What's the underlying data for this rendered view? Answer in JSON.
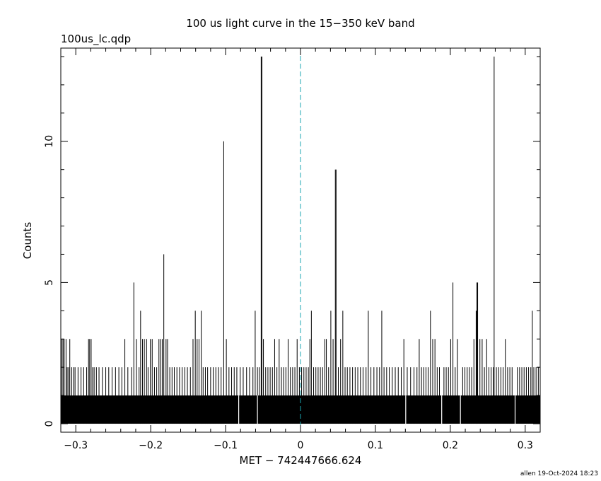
{
  "chart_data": {
    "type": "bar",
    "title": "100 us light curve in the 15−350 keV band",
    "subtitle": "100us_lc.qdp",
    "xlabel": "MET − 742447666.624",
    "ylabel": "Counts",
    "footer": "allen 19-Oct-2024 18:23",
    "xlim": [
      -0.32,
      0.32
    ],
    "ylim": [
      -0.3,
      13.3
    ],
    "x_ticks": [
      -0.3,
      -0.2,
      -0.1,
      0,
      0.1,
      0.2,
      0.3
    ],
    "x_tick_labels": [
      "−0.3",
      "−0.2",
      "−0.1",
      "0",
      "0.1",
      "0.2",
      "0.3"
    ],
    "y_ticks": [
      0,
      5,
      10
    ],
    "y_tick_labels": [
      "0",
      "5",
      "10"
    ],
    "baseline_counts": 1,
    "bin_width": 0.0001,
    "trigger_line_x": 0,
    "trigger_line_color": "#1aa6b0",
    "bar_color": "#000000",
    "gaps_zero_count": [
      -0.0825,
      -0.0575,
      0.1405,
      0.1885,
      0.2135,
      0.2865
    ],
    "series": [
      {
        "values_over_baseline": [
          {
            "x": -0.3185,
            "y": 3
          },
          {
            "x": -0.317,
            "y": 3
          },
          {
            "x": -0.3155,
            "y": 3
          },
          {
            "x": -0.313,
            "y": 3
          },
          {
            "x": -0.3115,
            "y": 2
          },
          {
            "x": -0.3095,
            "y": 2
          },
          {
            "x": -0.308,
            "y": 3
          },
          {
            "x": -0.3055,
            "y": 2
          },
          {
            "x": -0.303,
            "y": 2
          },
          {
            "x": -0.301,
            "y": 2
          },
          {
            "x": -0.297,
            "y": 2
          },
          {
            "x": -0.293,
            "y": 2
          },
          {
            "x": -0.2895,
            "y": 2
          },
          {
            "x": -0.2855,
            "y": 2
          },
          {
            "x": -0.283,
            "y": 3
          },
          {
            "x": -0.2815,
            "y": 3
          },
          {
            "x": -0.2795,
            "y": 3
          },
          {
            "x": -0.2775,
            "y": 2
          },
          {
            "x": -0.2755,
            "y": 2
          },
          {
            "x": -0.2725,
            "y": 2
          },
          {
            "x": -0.269,
            "y": 2
          },
          {
            "x": -0.2645,
            "y": 2
          },
          {
            "x": -0.26,
            "y": 2
          },
          {
            "x": -0.256,
            "y": 2
          },
          {
            "x": -0.2515,
            "y": 2
          },
          {
            "x": -0.247,
            "y": 2
          },
          {
            "x": -0.2425,
            "y": 2
          },
          {
            "x": -0.2385,
            "y": 2
          },
          {
            "x": -0.2345,
            "y": 3
          },
          {
            "x": -0.2305,
            "y": 2
          },
          {
            "x": -0.2255,
            "y": 2
          },
          {
            "x": -0.2225,
            "y": 5
          },
          {
            "x": -0.219,
            "y": 3
          },
          {
            "x": -0.2155,
            "y": 2
          },
          {
            "x": -0.2135,
            "y": 4
          },
          {
            "x": -0.211,
            "y": 3
          },
          {
            "x": -0.2085,
            "y": 3
          },
          {
            "x": -0.2055,
            "y": 3
          },
          {
            "x": -0.2035,
            "y": 2
          },
          {
            "x": -0.2005,
            "y": 3
          },
          {
            "x": -0.198,
            "y": 3
          },
          {
            "x": -0.195,
            "y": 2
          },
          {
            "x": -0.192,
            "y": 2
          },
          {
            "x": -0.189,
            "y": 3
          },
          {
            "x": -0.1865,
            "y": 3
          },
          {
            "x": -0.1845,
            "y": 3
          },
          {
            "x": -0.1825,
            "y": 6
          },
          {
            "x": -0.1795,
            "y": 3
          },
          {
            "x": -0.1775,
            "y": 3
          },
          {
            "x": -0.1745,
            "y": 2
          },
          {
            "x": -0.1715,
            "y": 2
          },
          {
            "x": -0.1685,
            "y": 2
          },
          {
            "x": -0.165,
            "y": 2
          },
          {
            "x": -0.1615,
            "y": 2
          },
          {
            "x": -0.158,
            "y": 2
          },
          {
            "x": -0.1545,
            "y": 2
          },
          {
            "x": -0.151,
            "y": 2
          },
          {
            "x": -0.147,
            "y": 2
          },
          {
            "x": -0.1435,
            "y": 3
          },
          {
            "x": -0.1405,
            "y": 4
          },
          {
            "x": -0.138,
            "y": 3
          },
          {
            "x": -0.1355,
            "y": 3
          },
          {
            "x": -0.1325,
            "y": 4
          },
          {
            "x": -0.13,
            "y": 2
          },
          {
            "x": -0.127,
            "y": 2
          },
          {
            "x": -0.124,
            "y": 2
          },
          {
            "x": -0.12,
            "y": 2
          },
          {
            "x": -0.1165,
            "y": 2
          },
          {
            "x": -0.113,
            "y": 2
          },
          {
            "x": -0.1095,
            "y": 2
          },
          {
            "x": -0.106,
            "y": 2
          },
          {
            "x": -0.1025,
            "y": 10
          },
          {
            "x": -0.099,
            "y": 3
          },
          {
            "x": -0.0955,
            "y": 2
          },
          {
            "x": -0.092,
            "y": 2
          },
          {
            "x": -0.0885,
            "y": 2
          },
          {
            "x": -0.085,
            "y": 2
          },
          {
            "x": -0.0805,
            "y": 2
          },
          {
            "x": -0.0765,
            "y": 2
          },
          {
            "x": -0.072,
            "y": 2
          },
          {
            "x": -0.068,
            "y": 2
          },
          {
            "x": -0.0635,
            "y": 2
          },
          {
            "x": -0.0605,
            "y": 4
          },
          {
            "x": -0.0575,
            "y": 2
          },
          {
            "x": -0.055,
            "y": 2
          },
          {
            "x": -0.0525,
            "y": 13
          },
          {
            "x": -0.0515,
            "y": 13
          },
          {
            "x": -0.0495,
            "y": 3
          },
          {
            "x": -0.0465,
            "y": 2
          },
          {
            "x": -0.0435,
            "y": 2
          },
          {
            "x": -0.0405,
            "y": 2
          },
          {
            "x": -0.0375,
            "y": 2
          },
          {
            "x": -0.0345,
            "y": 3
          },
          {
            "x": -0.0315,
            "y": 2
          },
          {
            "x": -0.0285,
            "y": 3
          },
          {
            "x": -0.0255,
            "y": 2
          },
          {
            "x": -0.0225,
            "y": 2
          },
          {
            "x": -0.0195,
            "y": 2
          },
          {
            "x": -0.0165,
            "y": 3
          },
          {
            "x": -0.0135,
            "y": 2
          },
          {
            "x": -0.0105,
            "y": 2
          },
          {
            "x": -0.0075,
            "y": 2
          },
          {
            "x": -0.0045,
            "y": 3
          },
          {
            "x": -0.0015,
            "y": 2
          },
          {
            "x": 0.0015,
            "y": 2
          },
          {
            "x": 0.0045,
            "y": 2
          },
          {
            "x": 0.0075,
            "y": 2
          },
          {
            "x": 0.0105,
            "y": 2
          },
          {
            "x": 0.0125,
            "y": 3
          },
          {
            "x": 0.0145,
            "y": 4
          },
          {
            "x": 0.0175,
            "y": 2
          },
          {
            "x": 0.0205,
            "y": 2
          },
          {
            "x": 0.0235,
            "y": 2
          },
          {
            "x": 0.0265,
            "y": 2
          },
          {
            "x": 0.0295,
            "y": 2
          },
          {
            "x": 0.0325,
            "y": 3
          },
          {
            "x": 0.0345,
            "y": 3
          },
          {
            "x": 0.0375,
            "y": 2
          },
          {
            "x": 0.0405,
            "y": 4
          },
          {
            "x": 0.0435,
            "y": 3
          },
          {
            "x": 0.0465,
            "y": 9
          },
          {
            "x": 0.0475,
            "y": 9
          },
          {
            "x": 0.0505,
            "y": 2
          },
          {
            "x": 0.0535,
            "y": 3
          },
          {
            "x": 0.0565,
            "y": 4
          },
          {
            "x": 0.0595,
            "y": 2
          },
          {
            "x": 0.0625,
            "y": 2
          },
          {
            "x": 0.066,
            "y": 2
          },
          {
            "x": 0.0695,
            "y": 2
          },
          {
            "x": 0.073,
            "y": 2
          },
          {
            "x": 0.0765,
            "y": 2
          },
          {
            "x": 0.08,
            "y": 2
          },
          {
            "x": 0.0835,
            "y": 2
          },
          {
            "x": 0.0875,
            "y": 2
          },
          {
            "x": 0.0905,
            "y": 4
          },
          {
            "x": 0.094,
            "y": 2
          },
          {
            "x": 0.098,
            "y": 2
          },
          {
            "x": 0.102,
            "y": 2
          },
          {
            "x": 0.1055,
            "y": 2
          },
          {
            "x": 0.1085,
            "y": 4
          },
          {
            "x": 0.1115,
            "y": 2
          },
          {
            "x": 0.115,
            "y": 2
          },
          {
            "x": 0.1185,
            "y": 2
          },
          {
            "x": 0.1225,
            "y": 2
          },
          {
            "x": 0.1265,
            "y": 2
          },
          {
            "x": 0.1305,
            "y": 2
          },
          {
            "x": 0.1345,
            "y": 2
          },
          {
            "x": 0.138,
            "y": 3
          },
          {
            "x": 0.1425,
            "y": 2
          },
          {
            "x": 0.147,
            "y": 2
          },
          {
            "x": 0.1515,
            "y": 2
          },
          {
            "x": 0.1555,
            "y": 2
          },
          {
            "x": 0.1585,
            "y": 3
          },
          {
            "x": 0.1615,
            "y": 2
          },
          {
            "x": 0.1645,
            "y": 2
          },
          {
            "x": 0.1675,
            "y": 2
          },
          {
            "x": 0.1705,
            "y": 2
          },
          {
            "x": 0.1735,
            "y": 4
          },
          {
            "x": 0.1765,
            "y": 3
          },
          {
            "x": 0.1795,
            "y": 3
          },
          {
            "x": 0.1825,
            "y": 2
          },
          {
            "x": 0.1855,
            "y": 2
          },
          {
            "x": 0.1915,
            "y": 2
          },
          {
            "x": 0.1945,
            "y": 2
          },
          {
            "x": 0.1975,
            "y": 2
          },
          {
            "x": 0.2005,
            "y": 3
          },
          {
            "x": 0.2035,
            "y": 5
          },
          {
            "x": 0.2065,
            "y": 2
          },
          {
            "x": 0.2095,
            "y": 3
          },
          {
            "x": 0.2165,
            "y": 2
          },
          {
            "x": 0.2195,
            "y": 2
          },
          {
            "x": 0.2225,
            "y": 2
          },
          {
            "x": 0.2255,
            "y": 2
          },
          {
            "x": 0.2285,
            "y": 2
          },
          {
            "x": 0.2315,
            "y": 3
          },
          {
            "x": 0.2345,
            "y": 4
          },
          {
            "x": 0.2355,
            "y": 5
          },
          {
            "x": 0.2365,
            "y": 5
          },
          {
            "x": 0.2395,
            "y": 3
          },
          {
            "x": 0.2425,
            "y": 3
          },
          {
            "x": 0.2455,
            "y": 2
          },
          {
            "x": 0.2485,
            "y": 3
          },
          {
            "x": 0.2515,
            "y": 2
          },
          {
            "x": 0.2545,
            "y": 2
          },
          {
            "x": 0.2575,
            "y": 2
          },
          {
            "x": 0.2585,
            "y": 13
          },
          {
            "x": 0.2615,
            "y": 2
          },
          {
            "x": 0.2645,
            "y": 2
          },
          {
            "x": 0.2675,
            "y": 2
          },
          {
            "x": 0.2705,
            "y": 2
          },
          {
            "x": 0.2735,
            "y": 3
          },
          {
            "x": 0.2765,
            "y": 2
          },
          {
            "x": 0.2795,
            "y": 2
          },
          {
            "x": 0.2825,
            "y": 2
          },
          {
            "x": 0.2895,
            "y": 2
          },
          {
            "x": 0.2925,
            "y": 2
          },
          {
            "x": 0.2955,
            "y": 2
          },
          {
            "x": 0.2985,
            "y": 2
          },
          {
            "x": 0.3015,
            "y": 2
          },
          {
            "x": 0.3045,
            "y": 2
          },
          {
            "x": 0.3075,
            "y": 2
          },
          {
            "x": 0.3095,
            "y": 4
          },
          {
            "x": 0.3115,
            "y": 2
          },
          {
            "x": 0.3145,
            "y": 2
          },
          {
            "x": 0.3175,
            "y": 2
          }
        ]
      }
    ]
  }
}
